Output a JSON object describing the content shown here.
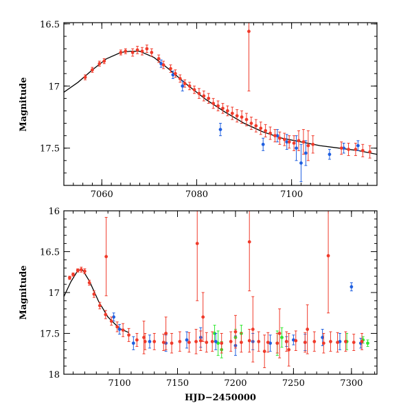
{
  "figure": {
    "xlabel": "HJD−2450000",
    "series_colors": {
      "red": "#f03a2a",
      "blue": "#1f5fe0",
      "green": "#2ee82e",
      "model": "#000000"
    }
  },
  "chart_data": [
    {
      "type": "scatter",
      "title": "",
      "xlabel": "",
      "ylabel": "Magnitude",
      "xlim": [
        7052,
        7118
      ],
      "ylim": [
        17.8,
        16.49
      ],
      "y_inverted": true,
      "xticks": [
        7060,
        7080,
        7100
      ],
      "yticks": [
        16.5,
        17,
        17.5
      ],
      "xtick_labels": [
        "7060",
        "7080",
        "7100"
      ],
      "ytick_labels": [
        "16.5",
        "17",
        "17.5"
      ],
      "model_curve": {
        "x": [
          7052,
          7055,
          7058,
          7061,
          7064,
          7066,
          7068,
          7071,
          7074,
          7078,
          7082,
          7086,
          7090,
          7094,
          7098,
          7102,
          7106,
          7110,
          7114,
          7118
        ],
        "y": [
          17.05,
          16.97,
          16.87,
          16.78,
          16.73,
          16.72,
          16.72,
          16.77,
          16.86,
          16.99,
          17.11,
          17.21,
          17.3,
          17.37,
          17.42,
          17.45,
          17.48,
          17.5,
          17.52,
          17.55
        ]
      },
      "series": [
        {
          "name": "red",
          "x": [
            7056.5,
            7058,
            7059.5,
            7060.5,
            7064,
            7065,
            7066.5,
            7067.5,
            7068.5,
            7069.5,
            7070.5,
            7072,
            7073,
            7074.5,
            7075.5,
            7076.5,
            7077.5,
            7078.5,
            7079.5,
            7080.5,
            7081.5,
            7082.5,
            7083.5,
            7084.5,
            7085.5,
            7086.5,
            7087.5,
            7088.5,
            7089.5,
            7090.5,
            7091.5,
            7092.5,
            7093.5,
            7094.5,
            7095.5,
            7096.5,
            7097.5,
            7098.5,
            7099.5,
            7100.5,
            7101.5,
            7102.5,
            7103.5,
            7104.5,
            7110.5,
            7112,
            7113.5,
            7115,
            7116.5,
            7091
          ],
          "y": [
            16.93,
            16.87,
            16.82,
            16.8,
            16.73,
            16.72,
            16.73,
            16.71,
            16.72,
            16.7,
            16.73,
            16.78,
            16.83,
            16.86,
            16.9,
            16.94,
            16.98,
            17.0,
            17.03,
            17.06,
            17.08,
            17.1,
            17.14,
            17.16,
            17.18,
            17.2,
            17.22,
            17.24,
            17.25,
            17.27,
            17.3,
            17.32,
            17.34,
            17.36,
            17.38,
            17.4,
            17.42,
            17.43,
            17.45,
            17.46,
            17.44,
            17.45,
            17.48,
            17.47,
            17.5,
            17.51,
            17.51,
            17.52,
            17.53,
            16.56
          ],
          "err": [
            0.02,
            0.02,
            0.02,
            0.02,
            0.02,
            0.02,
            0.03,
            0.03,
            0.03,
            0.03,
            0.03,
            0.03,
            0.03,
            0.03,
            0.03,
            0.03,
            0.03,
            0.03,
            0.03,
            0.04,
            0.04,
            0.04,
            0.04,
            0.04,
            0.04,
            0.04,
            0.05,
            0.05,
            0.05,
            0.05,
            0.05,
            0.05,
            0.05,
            0.05,
            0.05,
            0.05,
            0.05,
            0.05,
            0.05,
            0.06,
            0.08,
            0.1,
            0.12,
            0.07,
            0.05,
            0.05,
            0.05,
            0.05,
            0.05,
            0.48
          ]
        },
        {
          "name": "blue",
          "x": [
            7072.5,
            7075,
            7077,
            7085,
            7094,
            7097,
            7099,
            7101,
            7102,
            7103,
            7108,
            7111,
            7114
          ],
          "y": [
            16.82,
            16.91,
            17.0,
            17.35,
            17.47,
            17.4,
            17.45,
            17.5,
            17.62,
            17.54,
            17.55,
            17.5,
            17.48
          ],
          "err": [
            0.03,
            0.03,
            0.04,
            0.05,
            0.05,
            0.05,
            0.06,
            0.1,
            0.15,
            0.1,
            0.04,
            0.04,
            0.04
          ]
        }
      ]
    },
    {
      "type": "scatter",
      "title": "",
      "xlabel": "HJD−2450000",
      "ylabel": "Magnitude",
      "xlim": [
        7052,
        7322
      ],
      "ylim": [
        18.0,
        16.0
      ],
      "y_inverted": true,
      "xticks": [
        7100,
        7150,
        7200,
        7250,
        7300
      ],
      "yticks": [
        16,
        16.5,
        17,
        17.5,
        18
      ],
      "xtick_labels": [
        "7100",
        "7150",
        "7200",
        "7250",
        "7300"
      ],
      "ytick_labels": [
        "16",
        "16.5",
        "17",
        "17.5",
        "18"
      ],
      "model_curve": {
        "x": [
          7052,
          7058,
          7064,
          7068,
          7074,
          7082,
          7090,
          7100,
          7108
        ],
        "y": [
          17.05,
          16.87,
          16.73,
          16.72,
          16.86,
          17.11,
          17.3,
          17.44,
          17.49
        ]
      },
      "series": [
        {
          "name": "red",
          "x": [
            7057,
            7060,
            7064,
            7067,
            7070,
            7074,
            7078,
            7083,
            7088,
            7093,
            7098,
            7103,
            7108,
            7115,
            7122,
            7130,
            7138,
            7145,
            7152,
            7160,
            7166,
            7170,
            7175,
            7180,
            7188,
            7196,
            7205,
            7212,
            7220,
            7228,
            7236,
            7244,
            7252,
            7260,
            7268,
            7276,
            7282,
            7288,
            7295,
            7302,
            7309,
            7088.5,
            7167,
            7172,
            7212,
            7215,
            7238,
            7280,
            7262,
            7200,
            7140,
            7121,
            7246,
            7225
          ],
          "y": [
            16.82,
            16.78,
            16.73,
            16.72,
            16.74,
            16.88,
            17.02,
            17.16,
            17.27,
            17.35,
            17.42,
            17.46,
            17.52,
            17.58,
            17.6,
            17.6,
            17.61,
            17.62,
            17.6,
            17.61,
            17.6,
            17.59,
            17.61,
            17.6,
            17.62,
            17.6,
            17.61,
            17.59,
            17.6,
            17.61,
            17.62,
            17.6,
            17.59,
            17.61,
            17.6,
            17.62,
            17.6,
            17.61,
            17.6,
            17.61,
            17.6,
            16.56,
            16.4,
            17.3,
            16.38,
            17.45,
            17.5,
            16.55,
            17.45,
            17.48,
            17.5,
            17.55,
            17.7,
            17.72
          ],
          "err": [
            0.02,
            0.02,
            0.02,
            0.03,
            0.03,
            0.03,
            0.04,
            0.04,
            0.05,
            0.05,
            0.06,
            0.08,
            0.08,
            0.08,
            0.1,
            0.1,
            0.1,
            0.12,
            0.12,
            0.12,
            0.15,
            0.12,
            0.12,
            0.12,
            0.12,
            0.12,
            0.12,
            0.14,
            0.12,
            0.12,
            0.12,
            0.12,
            0.12,
            0.12,
            0.12,
            0.12,
            0.12,
            0.12,
            0.12,
            0.1,
            0.1,
            0.48,
            0.7,
            0.3,
            0.6,
            0.4,
            0.3,
            0.7,
            0.3,
            0.2,
            0.2,
            0.2,
            0.2,
            0.2
          ]
        },
        {
          "name": "blue",
          "x": [
            7095,
            7100,
            7112,
            7126,
            7140,
            7158,
            7170,
            7183,
            7200,
            7215,
            7230,
            7244,
            7250,
            7260,
            7275,
            7290,
            7300,
            7308
          ],
          "y": [
            17.3,
            17.45,
            17.62,
            17.6,
            17.62,
            17.58,
            17.55,
            17.6,
            17.65,
            17.6,
            17.62,
            17.6,
            17.58,
            17.61,
            17.55,
            17.6,
            16.93,
            17.62
          ],
          "err": [
            0.05,
            0.06,
            0.08,
            0.08,
            0.1,
            0.1,
            0.12,
            0.1,
            0.12,
            0.1,
            0.1,
            0.06,
            0.06,
            0.1,
            0.1,
            0.1,
            0.05,
            0.06
          ]
        },
        {
          "name": "green",
          "x": [
            7182,
            7185,
            7188,
            7200,
            7205,
            7236,
            7240,
            7296,
            7310,
            7314
          ],
          "y": [
            17.5,
            17.62,
            17.7,
            17.55,
            17.5,
            17.62,
            17.55,
            17.6,
            17.58,
            17.62
          ],
          "err": [
            0.1,
            0.15,
            0.1,
            0.1,
            0.1,
            0.15,
            0.12,
            0.1,
            0.04,
            0.04
          ]
        }
      ]
    }
  ]
}
